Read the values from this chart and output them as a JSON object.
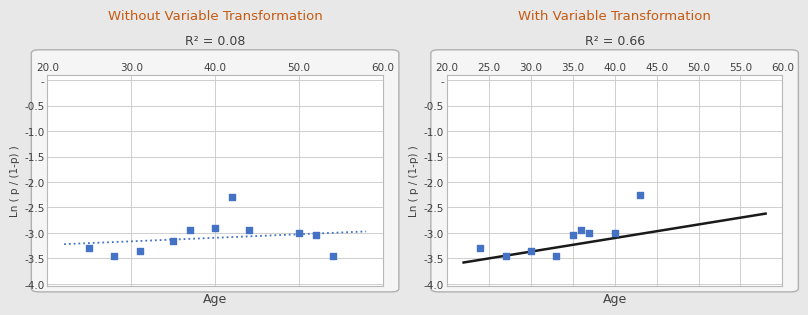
{
  "left": {
    "title": "Without Variable Transformation",
    "subtitle": "R² = 0.08",
    "xlabel": "Age",
    "ylabel": "Ln ( p / (1-p) )",
    "xlim": [
      20.0,
      60.0
    ],
    "ylim": [
      -4.05,
      0.1
    ],
    "xticks": [
      20.0,
      30.0,
      40.0,
      50.0,
      60.0
    ],
    "yticks": [
      -4.0,
      -3.5,
      -3.0,
      -2.5,
      -2.0,
      -1.5,
      -1.0,
      -0.5,
      0.0
    ],
    "scatter_x": [
      25,
      28,
      31,
      35,
      37,
      40,
      42,
      44,
      50,
      52,
      54
    ],
    "scatter_y": [
      -3.3,
      -3.45,
      -3.35,
      -3.15,
      -2.95,
      -2.9,
      -2.3,
      -2.95,
      -3.0,
      -3.05,
      -3.45
    ],
    "trend_line_x": [
      22,
      58
    ],
    "trend_line_y": [
      -3.22,
      -2.97
    ],
    "scatter_color": "#4472c4",
    "trend_line_color": "#4472c4",
    "trend_style": "dotted"
  },
  "right": {
    "title": "With Variable Transformation",
    "subtitle": "R² = 0.66",
    "xlabel": "Age",
    "ylabel": "Ln ( p / (1-p) )",
    "xlim": [
      20.0,
      60.0
    ],
    "ylim": [
      -4.05,
      0.1
    ],
    "xticks": [
      20.0,
      25.0,
      30.0,
      35.0,
      40.0,
      45.0,
      50.0,
      55.0,
      60.0
    ],
    "yticks": [
      -4.0,
      -3.5,
      -3.0,
      -2.5,
      -2.0,
      -1.5,
      -1.0,
      -0.5,
      0.0
    ],
    "scatter_x": [
      24,
      27,
      30,
      33,
      35,
      36,
      37,
      40,
      43
    ],
    "scatter_y": [
      -3.3,
      -3.45,
      -3.35,
      -3.45,
      -3.05,
      -2.95,
      -3.0,
      -3.0,
      -2.25
    ],
    "trend_line_x": [
      22,
      58
    ],
    "trend_line_y": [
      -3.58,
      -2.62
    ],
    "scatter_color": "#4472c4",
    "trend_line_color": "#1a1a1a",
    "trend_style": "solid"
  },
  "title_color": "#c55a11",
  "subtitle_color": "#404040",
  "background_color": "#ffffff",
  "grid_color": "#c8c8c8",
  "axis_tick_color": "#404040",
  "axis_label_color": "#404040",
  "figure_bg": "#e8e8e8",
  "panel_bg": "#f5f5f5"
}
